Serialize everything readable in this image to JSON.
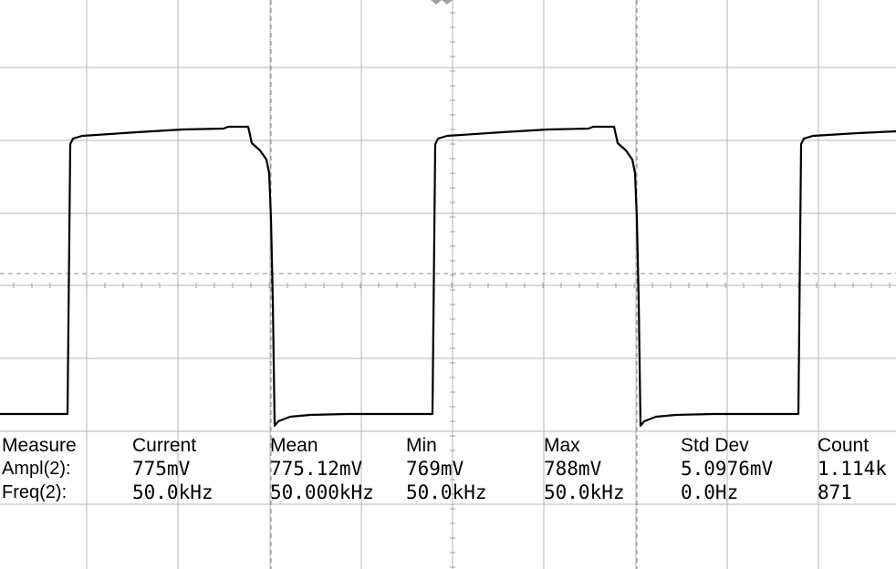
{
  "measurements": {
    "headers": [
      "Measure",
      "Current",
      "Mean",
      "Min",
      "Max",
      "Std Dev",
      "Count"
    ],
    "rows": [
      {
        "label": "Ampl(2):",
        "current": "775mV",
        "mean": "775.12mV",
        "min": "769mV",
        "max": "788mV",
        "std_dev": "5.0976mV",
        "count": "1.114k"
      },
      {
        "label": "Freq(2):",
        "current": "50.0kHz",
        "mean": "50.000kHz",
        "min": "50.0kHz",
        "max": "50.0kHz",
        "std_dev": "0.0Hz",
        "count": "871"
      }
    ]
  },
  "waveform": {
    "type": "square",
    "channel": 2,
    "colors": {
      "trace": "#000000",
      "grid": "#b4b4b4",
      "background": "#ffffff"
    }
  }
}
